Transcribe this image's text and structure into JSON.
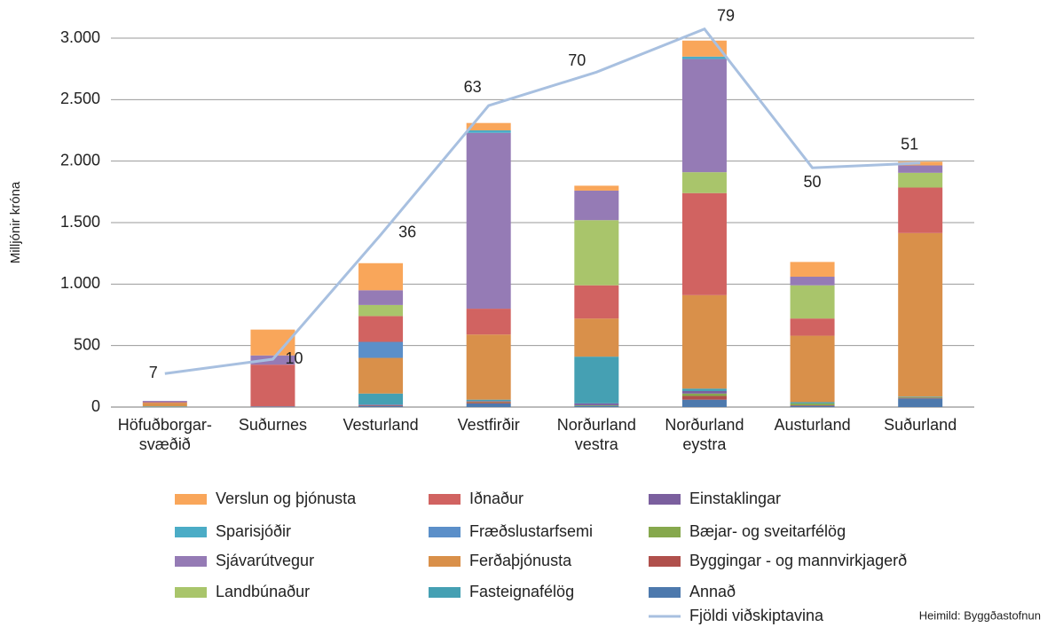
{
  "chart_data": {
    "type": "bar",
    "stacked": true,
    "ylabel": "Milljónir króna",
    "source": "Heimild: Byggðastofnun",
    "categories": [
      "Höfuðborgar-svæðið",
      "Suðurnes",
      "Vesturland",
      "Vestfirðir",
      "Norðurland vestra",
      "Norðurland eystra",
      "Austurland",
      "Suðurland"
    ],
    "ylim": [
      0,
      3000
    ],
    "yticks": [
      0,
      500,
      {
        "value": 1000,
        "label": "1.000"
      },
      {
        "value": 1500,
        "label": "1.500"
      },
      {
        "value": 2000,
        "label": "2.000"
      },
      {
        "value": 2500,
        "label": "2.500"
      },
      {
        "value": 3000,
        "label": "3.000"
      }
    ],
    "y2lim": [
      0,
      77.1
    ],
    "grid": true,
    "series": [
      {
        "name": "Annað",
        "color": "#4d79ad",
        "values": [
          0,
          5,
          10,
          30,
          10,
          60,
          10,
          70
        ]
      },
      {
        "name": "Byggingar - og mannvirkjagerð",
        "color": "#b0504c",
        "values": [
          0,
          0,
          5,
          10,
          0,
          30,
          5,
          5
        ]
      },
      {
        "name": "Bæjar- og sveitarfélög",
        "color": "#86a84d",
        "values": [
          0,
          0,
          0,
          5,
          5,
          20,
          15,
          5
        ]
      },
      {
        "name": "Einstaklingar",
        "color": "#7b5f9e",
        "values": [
          0,
          0,
          5,
          5,
          15,
          20,
          0,
          0
        ]
      },
      {
        "name": "Fasteignafélög",
        "color": "#45a0b3",
        "values": [
          5,
          0,
          90,
          10,
          380,
          20,
          10,
          5
        ]
      },
      {
        "name": "Ferðaþjónusta",
        "color": "#d9904a",
        "values": [
          30,
          0,
          290,
          530,
          310,
          760,
          540,
          1330
        ]
      },
      {
        "name": "Fræðslustarfsemi",
        "color": "#5b8fc9",
        "values": [
          0,
          0,
          130,
          0,
          0,
          0,
          0,
          0
        ]
      },
      {
        "name": "Iðnaður",
        "color": "#d16361",
        "values": [
          5,
          340,
          210,
          210,
          270,
          830,
          140,
          370
        ]
      },
      {
        "name": "Landbúnaður",
        "color": "#a9c56b",
        "values": [
          0,
          0,
          90,
          0,
          530,
          170,
          270,
          120
        ]
      },
      {
        "name": "Sjávarútvegur",
        "color": "#957bb5",
        "values": [
          10,
          75,
          120,
          1430,
          240,
          920,
          70,
          60
        ]
      },
      {
        "name": "Sparisjóðir",
        "color": "#4bacc6",
        "values": [
          0,
          0,
          0,
          20,
          0,
          20,
          0,
          0
        ]
      },
      {
        "name": "Verslun og þjónusta",
        "color": "#f9a65a",
        "values": [
          0,
          210,
          220,
          60,
          40,
          130,
          120,
          30
        ]
      },
      {
        "name": "Fjöldi viðskiptavina",
        "type": "line",
        "axis": "y2",
        "color": "#a8c0e0",
        "values": [
          7,
          10,
          36,
          63,
          70,
          79,
          50,
          51
        ]
      }
    ]
  }
}
